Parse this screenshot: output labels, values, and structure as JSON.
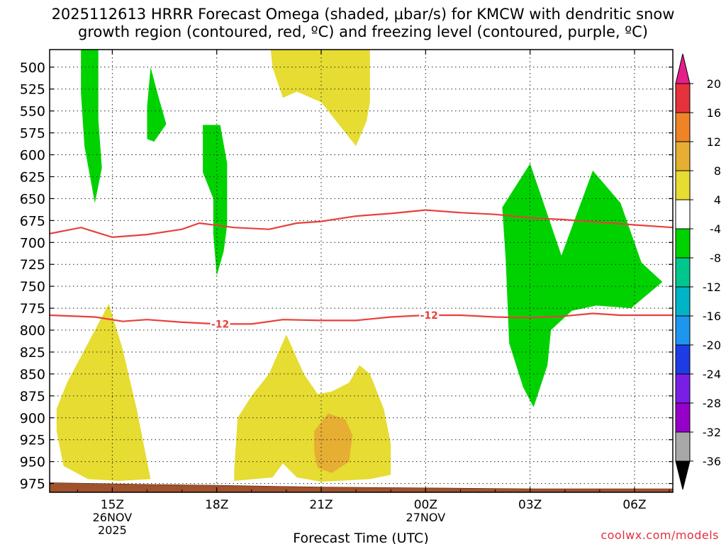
{
  "chart_data": {
    "type": "time-height contour",
    "title_line1": "2025112613 HRRR Forecast Omega (shaded, μbar/s) for KMCW with dendritic snow",
    "title_line2": "growth region (contoured, red, ºC) and freezing level (contoured, purple, ºC)",
    "xlabel": "Forecast Time (UTC)",
    "ylabel": "",
    "x_units": "hours since 2025-11-26 13Z",
    "xlim": [
      13.2,
      31.1
    ],
    "ylim": [
      985,
      480
    ],
    "y_ticks": [
      500,
      525,
      550,
      575,
      600,
      625,
      650,
      675,
      700,
      725,
      750,
      775,
      800,
      825,
      850,
      875,
      900,
      925,
      950,
      975
    ],
    "x_ticks": [
      {
        "x": 15,
        "label": "15Z",
        "sub1": "26NOV",
        "sub2": "2025"
      },
      {
        "x": 18,
        "label": "18Z",
        "sub1": "",
        "sub2": ""
      },
      {
        "x": 21,
        "label": "21Z",
        "sub1": "",
        "sub2": ""
      },
      {
        "x": 24,
        "label": "00Z",
        "sub1": "27NOV",
        "sub2": ""
      },
      {
        "x": 27,
        "label": "03Z",
        "sub1": "",
        "sub2": ""
      },
      {
        "x": 30,
        "label": "06Z",
        "sub1": "",
        "sub2": ""
      }
    ],
    "grid": true,
    "colorbar": {
      "labels": [
        "20",
        "16",
        "12",
        "8",
        "4",
        "-4",
        "-8",
        "-12",
        "-16",
        "-20",
        "-24",
        "-28",
        "-32",
        "-36"
      ],
      "bins": [
        {
          "color": "#e6323c"
        },
        {
          "color": "#ef8427"
        },
        {
          "color": "#e6ae32"
        },
        {
          "color": "#e6dc32"
        },
        {
          "color": "#ffffff"
        },
        {
          "color": "#00d200"
        },
        {
          "color": "#00c88c"
        },
        {
          "color": "#00b4c8"
        },
        {
          "color": "#1e96f0"
        },
        {
          "color": "#1e3ce6"
        },
        {
          "color": "#7a1ee6"
        },
        {
          "color": "#9600c8"
        },
        {
          "color": "#a8a8a8"
        }
      ],
      "top_arrow_color": "#e61e8c",
      "bottom_arrow_color": "#000000"
    },
    "shaded_regions": [
      {
        "level": "-4 to -8",
        "color": "#00d200",
        "points": [
          [
            14.1,
            480
          ],
          [
            14.6,
            480
          ],
          [
            14.6,
            560
          ],
          [
            14.7,
            615
          ],
          [
            14.5,
            655
          ],
          [
            14.2,
            590
          ],
          [
            14.1,
            530
          ]
        ]
      },
      {
        "level": "-4 to -8",
        "color": "#00d200",
        "points": [
          [
            16.1,
            500
          ],
          [
            16.3,
            530
          ],
          [
            16.55,
            565
          ],
          [
            16.2,
            585
          ],
          [
            16.0,
            582
          ],
          [
            16.0,
            545
          ]
        ]
      },
      {
        "level": "-4 to -8",
        "color": "#00d200",
        "points": [
          [
            17.6,
            566
          ],
          [
            18.1,
            566
          ],
          [
            18.3,
            610
          ],
          [
            18.3,
            680
          ],
          [
            18.2,
            710
          ],
          [
            18.0,
            738
          ],
          [
            17.9,
            690
          ],
          [
            17.9,
            650
          ],
          [
            17.6,
            620
          ]
        ]
      },
      {
        "level": "-4 to -8",
        "color": "#00d200",
        "points": [
          [
            27.0,
            610
          ],
          [
            27.9,
            715
          ],
          [
            28.8,
            618
          ],
          [
            29.6,
            655
          ],
          [
            30.2,
            723
          ],
          [
            30.8,
            745
          ],
          [
            29.9,
            775
          ],
          [
            28.9,
            772
          ],
          [
            28.2,
            778
          ],
          [
            27.6,
            800
          ],
          [
            27.5,
            840
          ],
          [
            27.1,
            888
          ],
          [
            26.8,
            865
          ],
          [
            26.4,
            815
          ],
          [
            26.3,
            720
          ],
          [
            26.2,
            660
          ]
        ]
      },
      {
        "level": "4 to 8",
        "color": "#e6dc32",
        "points": [
          [
            19.55,
            480
          ],
          [
            22.4,
            480
          ],
          [
            22.4,
            540
          ],
          [
            22.3,
            562
          ],
          [
            22.0,
            590
          ],
          [
            21.5,
            565
          ],
          [
            21.0,
            540
          ],
          [
            20.3,
            528
          ],
          [
            19.9,
            535
          ],
          [
            19.6,
            500
          ]
        ]
      },
      {
        "level": "4 to 8",
        "color": "#e6dc32",
        "points": [
          [
            14.9,
            770
          ],
          [
            15.3,
            822
          ],
          [
            15.7,
            890
          ],
          [
            16.0,
            950
          ],
          [
            16.1,
            970
          ],
          [
            15.2,
            972
          ],
          [
            14.3,
            970
          ],
          [
            13.6,
            955
          ],
          [
            13.4,
            915
          ],
          [
            13.4,
            890
          ],
          [
            13.7,
            860
          ]
        ]
      },
      {
        "level": "4 to 8",
        "color": "#e6dc32",
        "points": [
          [
            20.0,
            805
          ],
          [
            20.5,
            850
          ],
          [
            20.9,
            873
          ],
          [
            21.3,
            870
          ],
          [
            21.8,
            860
          ],
          [
            22.1,
            840
          ],
          [
            22.4,
            850
          ],
          [
            22.8,
            890
          ],
          [
            23.0,
            930
          ],
          [
            23.0,
            965
          ],
          [
            22.4,
            970
          ],
          [
            21.0,
            973
          ],
          [
            20.3,
            968
          ],
          [
            19.9,
            952
          ],
          [
            19.6,
            968
          ],
          [
            18.5,
            972
          ],
          [
            18.5,
            960
          ],
          [
            18.6,
            900
          ],
          [
            19.0,
            875
          ],
          [
            19.5,
            850
          ]
        ]
      },
      {
        "level": "8 to 12",
        "color": "#e6ae32",
        "points": [
          [
            21.2,
            895
          ],
          [
            21.7,
            902
          ],
          [
            21.9,
            920
          ],
          [
            21.8,
            950
          ],
          [
            21.3,
            963
          ],
          [
            20.9,
            957
          ],
          [
            20.8,
            940
          ],
          [
            20.8,
            915
          ]
        ]
      }
    ],
    "dgz_contours": [
      {
        "label": "-12",
        "label_x": [
          18.1,
          24.1
        ],
        "points": [
          [
            13.2,
            783
          ],
          [
            14.5,
            785
          ],
          [
            15.3,
            790
          ],
          [
            16.0,
            788
          ],
          [
            17.0,
            791
          ],
          [
            18.0,
            793
          ],
          [
            19.0,
            793
          ],
          [
            19.9,
            788
          ],
          [
            21.0,
            789
          ],
          [
            22.0,
            789
          ],
          [
            23.0,
            785
          ],
          [
            24.0,
            783
          ],
          [
            25.0,
            783
          ],
          [
            26.0,
            785
          ],
          [
            27.0,
            786
          ],
          [
            28.0,
            784
          ],
          [
            28.8,
            781
          ],
          [
            29.6,
            783
          ],
          [
            30.5,
            783
          ],
          [
            31.1,
            783
          ]
        ]
      },
      {
        "label": "",
        "label_x": [],
        "points": [
          [
            13.2,
            690
          ],
          [
            14.1,
            683
          ],
          [
            15.0,
            694
          ],
          [
            16.0,
            691
          ],
          [
            17.0,
            685
          ],
          [
            17.5,
            678
          ],
          [
            18.5,
            683
          ],
          [
            19.5,
            685
          ],
          [
            20.3,
            678
          ],
          [
            21.0,
            676
          ],
          [
            22.0,
            670
          ],
          [
            23.0,
            667
          ],
          [
            24.0,
            663
          ],
          [
            25.0,
            666
          ],
          [
            26.0,
            668
          ],
          [
            27.0,
            672
          ],
          [
            28.0,
            674
          ],
          [
            29.0,
            677
          ],
          [
            30.0,
            680
          ],
          [
            31.1,
            683
          ]
        ]
      }
    ],
    "terrain_surface": {
      "color": "#a0522d",
      "points": [
        [
          13.2,
          974
        ],
        [
          16.0,
          976
        ],
        [
          18.0,
          977
        ],
        [
          21.0,
          979
        ],
        [
          24.0,
          980
        ],
        [
          27.0,
          981
        ],
        [
          31.1,
          981
        ]
      ]
    }
  },
  "credit": "coolwx.com/models"
}
